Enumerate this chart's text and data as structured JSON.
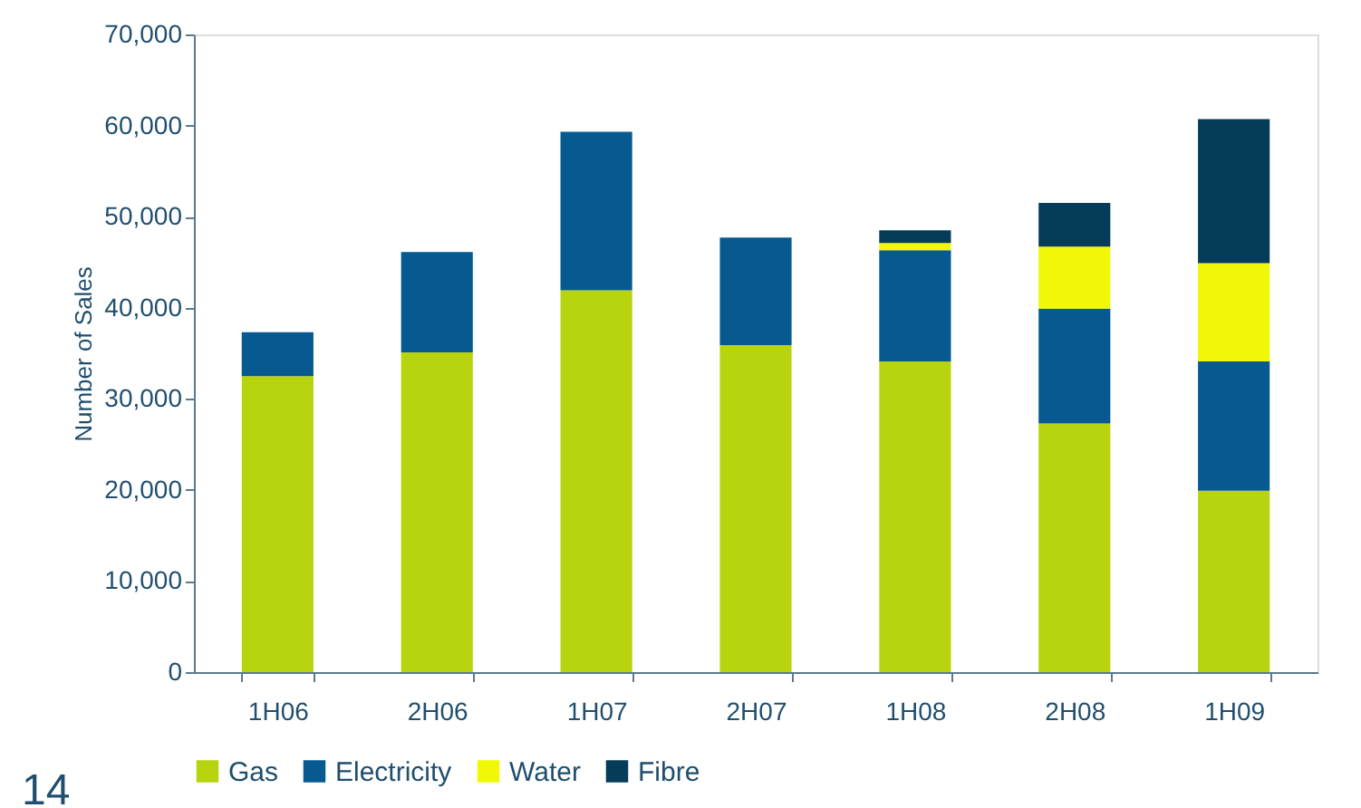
{
  "chart_data": {
    "type": "bar",
    "stacked": true,
    "ylabel": "Number of Sales",
    "categories": [
      "1H06",
      "2H06",
      "1H07",
      "2H07",
      "1H08",
      "2H08",
      "1H09"
    ],
    "series": [
      {
        "name": "Gas",
        "color": "#b8d40e",
        "values": [
          32500,
          35100,
          41900,
          35900,
          34100,
          27300,
          19900
        ]
      },
      {
        "name": "Electricity",
        "color": "#065a8f",
        "values": [
          4800,
          11000,
          17400,
          11800,
          12200,
          12600,
          14200
        ]
      },
      {
        "name": "Water",
        "color": "#f0f808",
        "values": [
          null,
          null,
          null,
          null,
          800,
          6800,
          10800
        ]
      },
      {
        "name": "Fibre",
        "color": "#043c5a",
        "values": [
          null,
          null,
          null,
          null,
          1400,
          4800,
          15800
        ]
      }
    ],
    "ylim": [
      0,
      70000
    ],
    "yticks": [
      {
        "value": 0,
        "label": "0"
      },
      {
        "value": 10000,
        "label": "10,000"
      },
      {
        "value": 20000,
        "label": "20,000"
      },
      {
        "value": 30000,
        "label": "30,000"
      },
      {
        "value": 40000,
        "label": "40,000"
      },
      {
        "value": 50000,
        "label": "50,000"
      },
      {
        "value": 60000,
        "label": "60,000"
      },
      {
        "value": 70000,
        "label": "70,000"
      }
    ],
    "grid": false,
    "legend": "bottom",
    "annotations": [
      "14"
    ]
  }
}
